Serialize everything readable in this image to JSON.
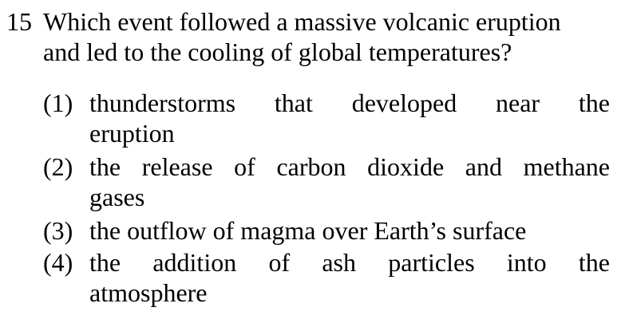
{
  "question": {
    "number": "15",
    "stem_lines": [
      "Which event followed a massive volcanic eruption",
      "and led to the cooling of global temperatures?"
    ]
  },
  "options": [
    {
      "label": "(1)",
      "lines": [
        "thunderstorms that developed near the",
        "eruption"
      ]
    },
    {
      "label": "(2)",
      "lines": [
        "the release of carbon dioxide and methane",
        "gases"
      ]
    },
    {
      "label": "(3)",
      "lines": [
        "the outflow of magma over Earth’s surface"
      ]
    },
    {
      "label": "(4)",
      "lines": [
        "the addition of ash particles into the",
        "atmosphere"
      ]
    }
  ]
}
